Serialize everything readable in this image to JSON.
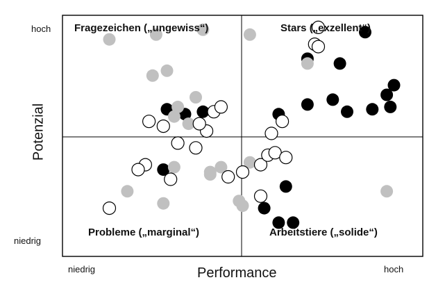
{
  "chart_data": {
    "type": "scatter",
    "xlabel": "Performance",
    "ylabel": "Potenzial",
    "xlim": [
      0,
      100
    ],
    "ylim": [
      0,
      100
    ],
    "x_ticks": {
      "low": "niedrig",
      "high": "hoch"
    },
    "y_ticks": {
      "low": "niedrig",
      "high": "hoch"
    },
    "quadrants": {
      "top_left": "Fragezeichen („ungewiss“)",
      "top_right": "Stars („exzellent“)",
      "bottom_left": "Probleme („marginal“)",
      "bottom_right": "Arbeitstiere („solide“)"
    },
    "colors": {
      "black": "#000000",
      "gray": "#c0c0c0",
      "open": "#ffffff",
      "stroke": "#000000"
    },
    "series": [
      {
        "fill": "black",
        "points": [
          [
            60,
            59
          ],
          [
            79,
            60
          ],
          [
            68,
            63
          ],
          [
            86,
            61
          ],
          [
            75,
            65
          ],
          [
            90,
            67
          ],
          [
            92,
            71
          ],
          [
            91,
            62
          ],
          [
            84,
            93
          ],
          [
            28,
            36
          ],
          [
            62,
            29
          ],
          [
            56,
            20
          ],
          [
            60,
            14
          ],
          [
            64,
            14
          ],
          [
            29,
            61
          ],
          [
            34,
            59
          ],
          [
            39,
            60
          ],
          [
            68,
            82
          ],
          [
            77,
            80
          ]
        ]
      },
      {
        "fill": "gray",
        "points": [
          [
            13,
            90
          ],
          [
            25,
            75
          ],
          [
            29,
            77
          ],
          [
            31,
            58
          ],
          [
            32,
            62
          ],
          [
            37,
            66
          ],
          [
            35,
            55
          ],
          [
            18,
            27
          ],
          [
            26,
            92
          ],
          [
            39,
            94
          ],
          [
            90,
            27
          ],
          [
            52,
            92
          ],
          [
            68,
            80
          ],
          [
            52,
            39
          ],
          [
            41,
            34
          ],
          [
            49,
            23
          ],
          [
            31,
            37
          ],
          [
            50,
            21
          ],
          [
            28,
            22
          ],
          [
            41,
            35
          ],
          [
            44,
            37
          ]
        ]
      },
      {
        "fill": "open",
        "points": [
          [
            40,
            52
          ],
          [
            37,
            45
          ],
          [
            28,
            54
          ],
          [
            32,
            47
          ],
          [
            23,
            38
          ],
          [
            13,
            20
          ],
          [
            30,
            32
          ],
          [
            46,
            33
          ],
          [
            50,
            35
          ],
          [
            55,
            25
          ],
          [
            55,
            38
          ],
          [
            57,
            42
          ],
          [
            59,
            43
          ],
          [
            62,
            41
          ],
          [
            58,
            51
          ],
          [
            61,
            56
          ],
          [
            70,
            88
          ],
          [
            71,
            87
          ],
          [
            71,
            95
          ],
          [
            21,
            36
          ],
          [
            24,
            56
          ],
          [
            38,
            55
          ],
          [
            42,
            60
          ],
          [
            44,
            62
          ]
        ]
      }
    ]
  }
}
